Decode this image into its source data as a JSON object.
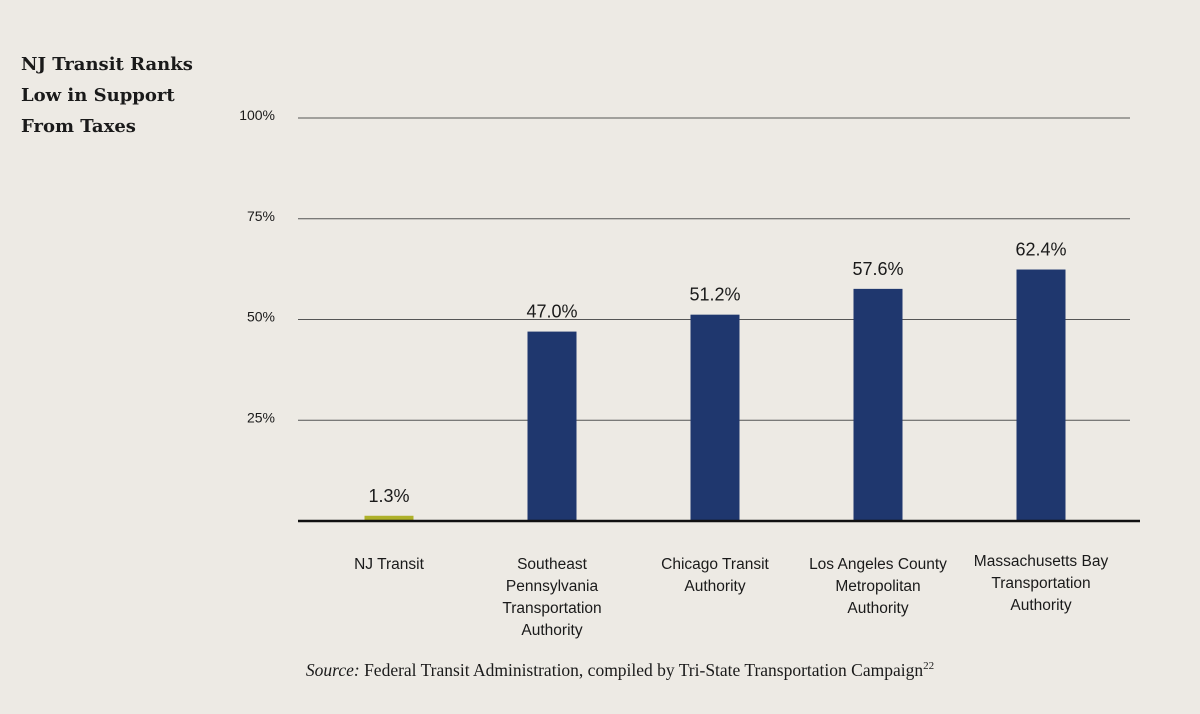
{
  "title_lines": [
    "NJ Transit Ranks",
    "Low in Support",
    "From Taxes"
  ],
  "source": {
    "label": "Source:",
    "text": "Federal Transit Administration, compiled by Tri-State Transportation Campaign",
    "footnote": "22"
  },
  "chart_data": {
    "type": "bar",
    "title": "NJ Transit Ranks Low in Support From Taxes",
    "categories": [
      [
        "NJ Transit"
      ],
      [
        "Southeast",
        "Pennsylvania",
        "Transportation",
        "Authority"
      ],
      [
        "Chicago Transit",
        "Authority"
      ],
      [
        "Los Angeles County",
        "Metropolitan",
        "Authority"
      ],
      [
        "Massachusetts Bay",
        "Transportation",
        "Authority"
      ]
    ],
    "values": [
      1.3,
      47.0,
      51.2,
      57.6,
      62.4
    ],
    "value_labels": [
      "1.3%",
      "47.0%",
      "51.2%",
      "57.6%",
      "62.4%"
    ],
    "bar_colors": [
      "#aeb12a",
      "#1f376e",
      "#1f376e",
      "#1f376e",
      "#1f376e"
    ],
    "ylim": [
      0,
      100
    ],
    "yticks": [
      25,
      50,
      75,
      100
    ],
    "ytick_labels": [
      "25%",
      "50%",
      "75%",
      "100%"
    ],
    "grid": true,
    "gridline_color": "#555555",
    "baseline_color": "#111111"
  }
}
